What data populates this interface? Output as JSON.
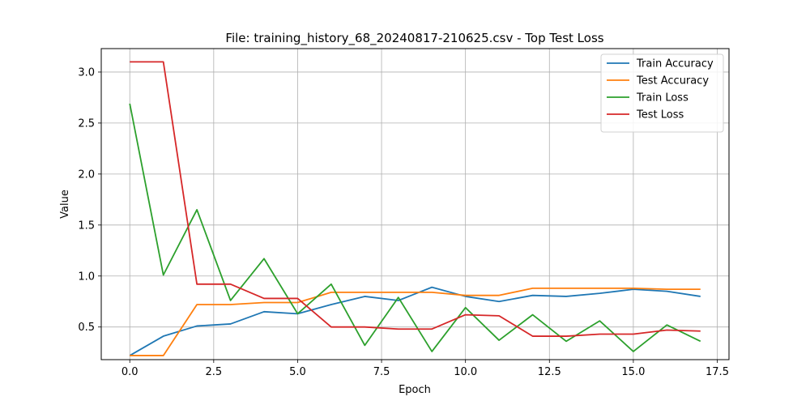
{
  "chart_data": {
    "type": "line",
    "title": "File: training_history_68_20240817-210625.csv - Top Test Loss",
    "xlabel": "Epoch",
    "ylabel": "Value",
    "xlim": [
      -0.85,
      17.85
    ],
    "ylim": [
      0.18,
      3.23
    ],
    "x_ticks": [
      0.0,
      2.5,
      5.0,
      7.5,
      10.0,
      12.5,
      15.0,
      17.5
    ],
    "x_tick_labels": [
      "0.0",
      "2.5",
      "5.0",
      "7.5",
      "10.0",
      "12.5",
      "15.0",
      "17.5"
    ],
    "y_ticks": [
      0.5,
      1.0,
      1.5,
      2.0,
      2.5,
      3.0
    ],
    "y_tick_labels": [
      "0.5",
      "1.0",
      "1.5",
      "2.0",
      "2.5",
      "3.0"
    ],
    "grid": true,
    "legend_position": "top-right",
    "x": [
      0,
      1,
      2,
      3,
      4,
      5,
      6,
      7,
      8,
      9,
      10,
      11,
      12,
      13,
      14,
      15,
      16,
      17
    ],
    "series": [
      {
        "name": "Train Accuracy",
        "color": "#1f77b4",
        "values": [
          0.22,
          0.41,
          0.51,
          0.53,
          0.65,
          0.63,
          0.72,
          0.8,
          0.76,
          0.89,
          0.8,
          0.75,
          0.81,
          0.8,
          0.83,
          0.87,
          0.85,
          0.8
        ]
      },
      {
        "name": "Test Accuracy",
        "color": "#ff7f0e",
        "values": [
          0.22,
          0.22,
          0.72,
          0.72,
          0.74,
          0.74,
          0.84,
          0.84,
          0.84,
          0.84,
          0.81,
          0.81,
          0.88,
          0.88,
          0.88,
          0.88,
          0.87,
          0.87
        ]
      },
      {
        "name": "Train Loss",
        "color": "#2ca02c",
        "values": [
          2.69,
          1.01,
          1.65,
          0.76,
          1.17,
          0.63,
          0.92,
          0.32,
          0.79,
          0.26,
          0.69,
          0.37,
          0.62,
          0.36,
          0.56,
          0.26,
          0.52,
          0.36
        ]
      },
      {
        "name": "Test Loss",
        "color": "#d62728",
        "values": [
          3.1,
          3.1,
          0.92,
          0.92,
          0.78,
          0.78,
          0.5,
          0.5,
          0.48,
          0.48,
          0.62,
          0.61,
          0.41,
          0.41,
          0.43,
          0.43,
          0.47,
          0.46
        ]
      }
    ]
  }
}
